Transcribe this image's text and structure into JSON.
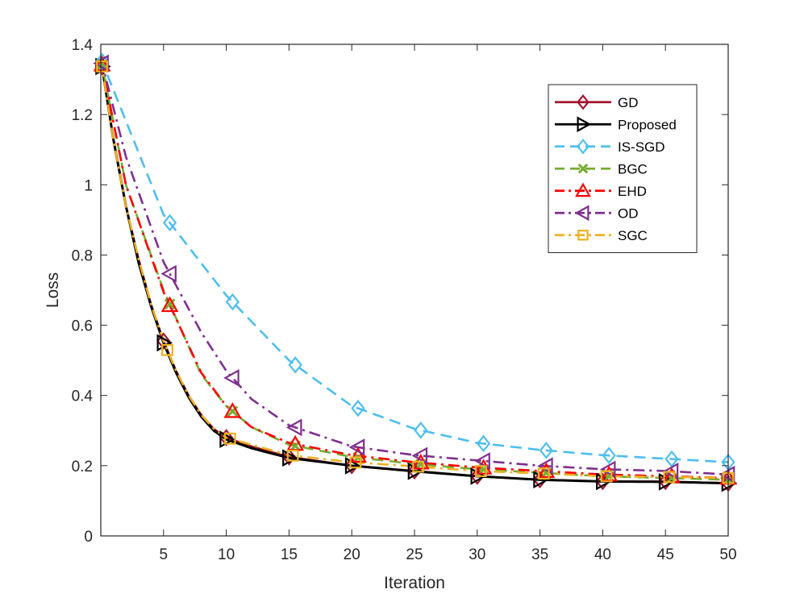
{
  "chart_data": {
    "type": "line",
    "title": "",
    "xlabel": "Iteration",
    "ylabel": "Loss",
    "xlim": [
      0,
      50
    ],
    "ylim": [
      0,
      1.4
    ],
    "xticks": [
      5,
      10,
      15,
      20,
      25,
      30,
      35,
      40,
      45,
      50
    ],
    "xtick_labels": [
      "5",
      "10",
      "15",
      "20",
      "25",
      "30",
      "35",
      "40",
      "45",
      "50"
    ],
    "yticks": [
      0,
      0.2,
      0.4,
      0.6,
      0.8,
      1,
      1.2,
      1.4
    ],
    "ytick_labels": [
      "0",
      "0.2",
      "0.4",
      "0.6",
      "0.8",
      "1",
      "1.2",
      "1.4"
    ],
    "legend_position": "top-right",
    "marker_x": [
      0,
      5,
      10,
      15,
      20,
      25,
      30,
      35,
      40,
      45,
      50
    ],
    "series": [
      {
        "name": "GD",
        "color": "#A2142F",
        "dash": "solid",
        "marker": "diamond",
        "x": [
          0,
          1,
          2,
          3,
          4,
          5,
          6,
          7,
          8,
          9,
          10,
          12,
          15,
          20,
          25,
          30,
          35,
          40,
          45,
          50
        ],
        "y": [
          1.36,
          1.13,
          0.94,
          0.79,
          0.66,
          0.555,
          0.47,
          0.4,
          0.345,
          0.305,
          0.28,
          0.255,
          0.225,
          0.2,
          0.185,
          0.17,
          0.16,
          0.155,
          0.155,
          0.15
        ]
      },
      {
        "name": "Proposed",
        "color": "#000000",
        "dash": "solid",
        "marker": "triangle-right",
        "x": [
          0,
          1,
          2,
          3,
          4,
          5,
          6,
          7,
          8,
          9,
          10,
          12,
          15,
          20,
          25,
          30,
          35,
          40,
          45,
          50
        ],
        "y": [
          1.36,
          1.13,
          0.94,
          0.78,
          0.655,
          0.55,
          0.465,
          0.395,
          0.34,
          0.3,
          0.275,
          0.25,
          0.222,
          0.2,
          0.184,
          0.17,
          0.16,
          0.155,
          0.154,
          0.15
        ]
      },
      {
        "name": "IS-SGD",
        "color": "#4DBEEE",
        "dash": "dash",
        "marker": "diamond",
        "x": [
          0,
          5,
          10,
          15,
          20,
          25,
          30,
          35,
          40,
          45,
          50
        ],
        "y": [
          1.36,
          0.915,
          0.685,
          0.5,
          0.37,
          0.305,
          0.265,
          0.245,
          0.23,
          0.22,
          0.21
        ]
      },
      {
        "name": "BGC",
        "color": "#77AC30",
        "dash": "dash",
        "marker": "x",
        "x": [
          0,
          2,
          5,
          8,
          10,
          12,
          15,
          20,
          25,
          30,
          35,
          40,
          45,
          50
        ],
        "y": [
          1.36,
          1.0,
          0.7,
          0.46,
          0.37,
          0.31,
          0.26,
          0.225,
          0.205,
          0.19,
          0.18,
          0.17,
          0.165,
          0.16
        ]
      },
      {
        "name": "EHD",
        "color": "#FF0000",
        "dash": "dashdot",
        "marker": "triangle-up",
        "x": [
          0,
          2,
          5,
          8,
          10,
          12,
          15,
          20,
          25,
          30,
          35,
          40,
          45,
          50
        ],
        "y": [
          1.36,
          1.0,
          0.695,
          0.465,
          0.37,
          0.31,
          0.265,
          0.23,
          0.21,
          0.195,
          0.185,
          0.175,
          0.17,
          0.165
        ]
      },
      {
        "name": "OD",
        "color": "#7E2F8E",
        "dash": "dashdot",
        "marker": "triangle-left",
        "x": [
          0,
          2,
          5,
          8,
          10,
          12,
          15,
          20,
          25,
          30,
          35,
          40,
          45,
          50
        ],
        "y": [
          1.36,
          1.08,
          0.78,
          0.58,
          0.47,
          0.39,
          0.315,
          0.255,
          0.23,
          0.215,
          0.2,
          0.19,
          0.185,
          0.175
        ]
      },
      {
        "name": "SGC",
        "color": "#EDB120",
        "dash": "dashdot",
        "marker": "square",
        "x": [
          0,
          1,
          2,
          3,
          4,
          5,
          6,
          7,
          8,
          9,
          10,
          12,
          15,
          20,
          25,
          30,
          35,
          40,
          45,
          50
        ],
        "y": [
          1.36,
          1.13,
          0.94,
          0.79,
          0.66,
          0.555,
          0.47,
          0.4,
          0.345,
          0.305,
          0.28,
          0.26,
          0.23,
          0.21,
          0.198,
          0.185,
          0.178,
          0.17,
          0.168,
          0.165
        ]
      }
    ]
  }
}
